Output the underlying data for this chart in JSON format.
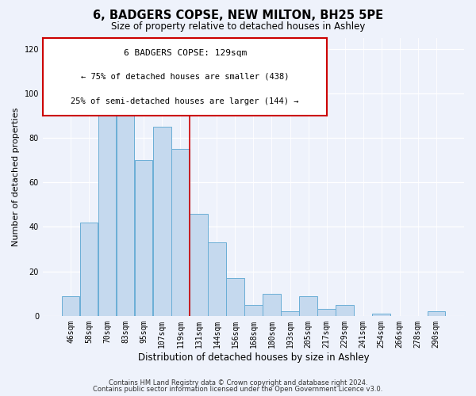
{
  "title": "6, BADGERS COPSE, NEW MILTON, BH25 5PE",
  "subtitle": "Size of property relative to detached houses in Ashley",
  "xlabel": "Distribution of detached houses by size in Ashley",
  "ylabel": "Number of detached properties",
  "bar_color": "#c5d9ee",
  "bar_edge_color": "#6aaed6",
  "categories": [
    "46sqm",
    "58sqm",
    "70sqm",
    "83sqm",
    "95sqm",
    "107sqm",
    "119sqm",
    "131sqm",
    "144sqm",
    "156sqm",
    "168sqm",
    "180sqm",
    "193sqm",
    "205sqm",
    "217sqm",
    "229sqm",
    "241sqm",
    "254sqm",
    "266sqm",
    "278sqm",
    "290sqm"
  ],
  "values": [
    9,
    42,
    91,
    90,
    70,
    85,
    75,
    46,
    33,
    17,
    5,
    10,
    2,
    9,
    3,
    5,
    0,
    1,
    0,
    0,
    2
  ],
  "vline_x_index": 7,
  "vline_color": "#cc0000",
  "ylim": [
    0,
    125
  ],
  "yticks": [
    0,
    20,
    40,
    60,
    80,
    100,
    120
  ],
  "annotation_title": "6 BADGERS COPSE: 129sqm",
  "annotation_line1": "← 75% of detached houses are smaller (438)",
  "annotation_line2": "25% of semi-detached houses are larger (144) →",
  "annotation_box_color": "#ffffff",
  "annotation_box_edge": "#cc0000",
  "footer1": "Contains HM Land Registry data © Crown copyright and database right 2024.",
  "footer2": "Contains public sector information licensed under the Open Government Licence v3.0.",
  "background_color": "#eef2fb"
}
